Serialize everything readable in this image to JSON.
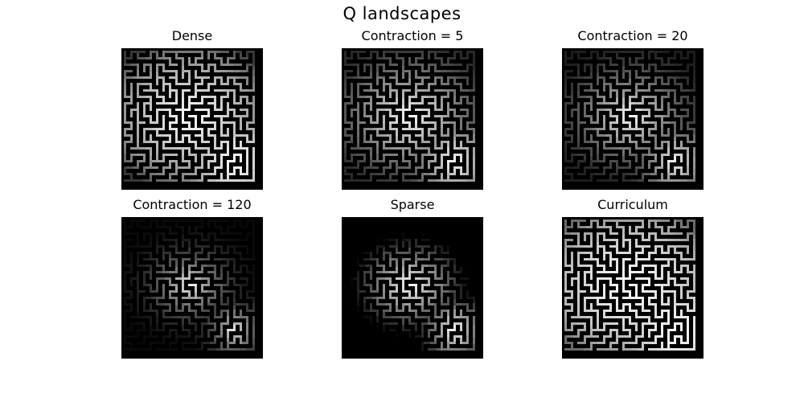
{
  "figure": {
    "title": "Q landscapes",
    "panels": [
      {
        "title": "Dense",
        "style": {
          "gamma": 0.55,
          "floor": 55,
          "cutoff": 0.0,
          "boost": 0.0
        }
      },
      {
        "title": "Contraction = 5",
        "style": {
          "gamma": 1.15,
          "floor": 40,
          "cutoff": 0.0,
          "boost": 0.0
        }
      },
      {
        "title": "Contraction = 20",
        "style": {
          "gamma": 1.5,
          "floor": 28,
          "cutoff": 0.0,
          "boost": 0.0
        }
      },
      {
        "title": "Contraction = 120",
        "style": {
          "gamma": 2.6,
          "floor": 8,
          "cutoff": 0.0,
          "boost": 0.0
        }
      },
      {
        "title": "Sparse",
        "style": {
          "gamma": 1.0,
          "floor": 0,
          "cutoff": 0.32,
          "boost": 0.0
        }
      },
      {
        "title": "Curriculum",
        "style": {
          "gamma": 0.55,
          "floor": 70,
          "cutoff": 0.0,
          "boost": 0.25
        }
      }
    ]
  }
}
